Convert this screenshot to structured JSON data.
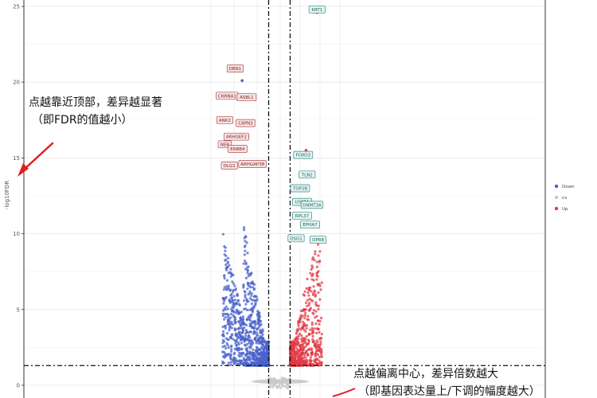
{
  "chart_data": {
    "type": "scatter",
    "title": "",
    "xlabel": "",
    "ylabel": "-log10FDR",
    "ylim": [
      0,
      25
    ],
    "yticks": [
      0,
      5,
      10,
      15,
      20,
      25
    ],
    "xlim": [
      -8,
      8
    ],
    "grid": true,
    "legend_position": "right",
    "thresholds": {
      "fdr_line_y": 1.3,
      "fc_lines_x": [
        -1,
        1
      ]
    },
    "colors": {
      "Down": "#4a63c9",
      "ns": "#c8c8c8",
      "Up": "#e23a45",
      "down_label_border": "#b54a4a",
      "down_label_bg": "#f6e4e4",
      "up_label_border": "#2e8b87",
      "up_label_bg": "#e5f4f2",
      "arrow": "#e02020"
    },
    "series": [
      {
        "name": "Down",
        "generated": {
          "count": 1000,
          "x_range": [
            -5,
            -1
          ],
          "y_max": 16,
          "seed": 11
        }
      },
      {
        "name": "ns",
        "generated": {
          "count": 60,
          "x_range": [
            -1,
            1
          ],
          "y_max": 1.3,
          "seed": 22
        }
      },
      {
        "name": "Up",
        "generated": {
          "count": 620,
          "x_range": [
            1,
            4.2
          ],
          "y_max": 8.5,
          "seed": 33
        }
      }
    ],
    "highlight_points": [
      {
        "group": "Up",
        "x": 3.7,
        "y": 24.6
      },
      {
        "group": "Down",
        "x": -3.3,
        "y": 20.1
      },
      {
        "group": "Down",
        "x": -2.8,
        "y": 16.4
      },
      {
        "group": "Up",
        "x": 2.6,
        "y": 15.5
      },
      {
        "group": "Up",
        "x": 2.3,
        "y": 13.1
      },
      {
        "group": "Up",
        "x": 2.8,
        "y": 11.2
      }
    ],
    "labeled_genes": [
      {
        "name": "KRT1",
        "group": "Up",
        "x": 3.7,
        "y": 24.8
      },
      {
        "name": "DBN1",
        "group": "Down",
        "x": -3.9,
        "y": 20.9
      },
      {
        "name": "CHRNA1",
        "group": "Down",
        "x": -4.6,
        "y": 19.1
      },
      {
        "name": "ASBL1",
        "group": "Down",
        "x": -2.9,
        "y": 19.0
      },
      {
        "name": "ANK2",
        "group": "Down",
        "x": -4.8,
        "y": 17.5
      },
      {
        "name": "CAPN3",
        "group": "Down",
        "x": -3.0,
        "y": 17.3
      },
      {
        "name": "ARHGEF2",
        "group": "Down",
        "x": -3.8,
        "y": 16.4
      },
      {
        "name": "NEB",
        "group": "Down",
        "x": -4.8,
        "y": 15.9
      },
      {
        "name": "ERBB4",
        "group": "Down",
        "x": -3.7,
        "y": 15.6
      },
      {
        "name": "DLG1",
        "group": "Down",
        "x": -4.4,
        "y": 14.5
      },
      {
        "name": "ARHGAP38",
        "group": "Down",
        "x": -2.4,
        "y": 14.6
      },
      {
        "name": "FOXO3",
        "group": "Up",
        "x": 2.3,
        "y": 15.2
      },
      {
        "name": "TLN2",
        "group": "Up",
        "x": 2.7,
        "y": 13.9
      },
      {
        "name": "TOP2B",
        "group": "Up",
        "x": 2.0,
        "y": 13.0
      },
      {
        "name": "USP51",
        "group": "Up",
        "x": 2.2,
        "y": 12.1
      },
      {
        "name": "DNMT3A",
        "group": "Up",
        "x": 3.2,
        "y": 11.9
      },
      {
        "name": "RPL37",
        "group": "Up",
        "x": 2.2,
        "y": 11.2
      },
      {
        "name": "EPHA7",
        "group": "Up",
        "x": 3.0,
        "y": 10.6
      },
      {
        "name": "DSG1",
        "group": "Up",
        "x": 1.6,
        "y": 9.7
      },
      {
        "name": "OPR8",
        "group": "Up",
        "x": 3.8,
        "y": 9.6
      }
    ],
    "annotations": [
      {
        "id": "top",
        "lines": [
          "点越靠近顶部，差异越显著",
          "（即FDR的值越小）"
        ]
      },
      {
        "id": "center",
        "lines": [
          "点越偏离中心，差异倍数越大",
          "（即基因表达量上/下调的幅度越大）"
        ]
      }
    ]
  }
}
